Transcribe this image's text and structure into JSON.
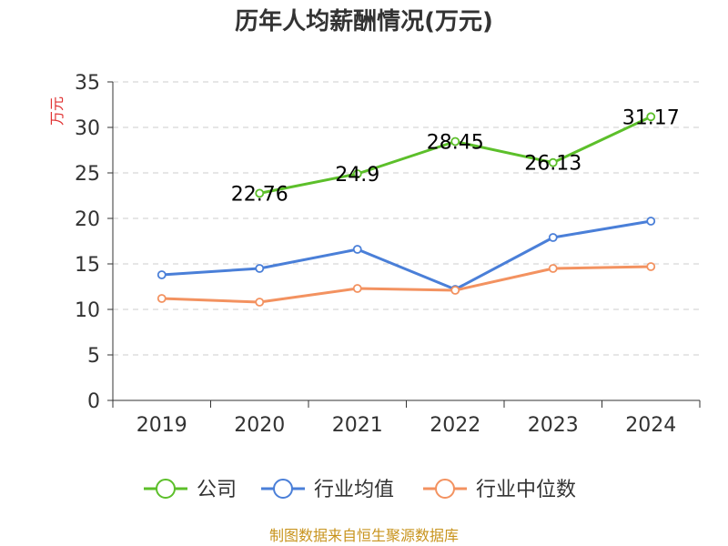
{
  "chart_data": {
    "type": "line",
    "title": "历年人均薪酬情况(万元)",
    "ylabel": "万元",
    "xlabel": "",
    "categories": [
      "2019",
      "2020",
      "2021",
      "2022",
      "2023",
      "2024"
    ],
    "ylim": [
      0,
      35
    ],
    "yticks": [
      "0",
      "5",
      "10",
      "15",
      "20",
      "25",
      "30",
      "35"
    ],
    "grid": true,
    "legend_position": "bottom",
    "series": [
      {
        "name": "公司",
        "color": "#5cbf2a",
        "values": [
          null,
          22.76,
          24.9,
          28.45,
          26.13,
          31.17
        ],
        "labels": [
          null,
          "22.76",
          "24.9",
          "28.45",
          "26.13",
          "31.17"
        ]
      },
      {
        "name": "行业均值",
        "color": "#4a7fd8",
        "values": [
          13.8,
          14.5,
          16.6,
          12.2,
          17.9,
          19.7
        ]
      },
      {
        "name": "行业中位数",
        "color": "#f39260",
        "values": [
          11.2,
          10.8,
          12.3,
          12.1,
          14.5,
          14.7
        ]
      }
    ]
  },
  "source_text": "制图数据来自恒生聚源数据库",
  "colors": {
    "ylabel": "#e03030",
    "source": "#c8941e",
    "grid": "#cccccc",
    "axis": "#333333"
  }
}
